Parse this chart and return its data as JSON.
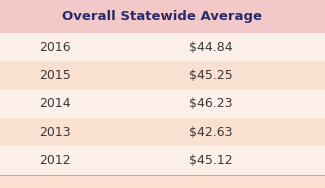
{
  "title": "Overall Statewide Average",
  "years": [
    "2016",
    "2015",
    "2014",
    "2013",
    "2012"
  ],
  "values": [
    "$44.84",
    "$45.25",
    "$46.23",
    "$42.63",
    "$45.12"
  ],
  "header_bg": "#f2c8c8",
  "row_bg_light": "#fdf0e8",
  "row_bg_alt": "#fae0d0",
  "outer_bg": "#f5d8c8",
  "text_color_header": "#2b2b6b",
  "text_color_rows": "#3a3a3a",
  "border_color": "#c8a898",
  "title_fontsize": 9.5,
  "row_fontsize": 9.0
}
